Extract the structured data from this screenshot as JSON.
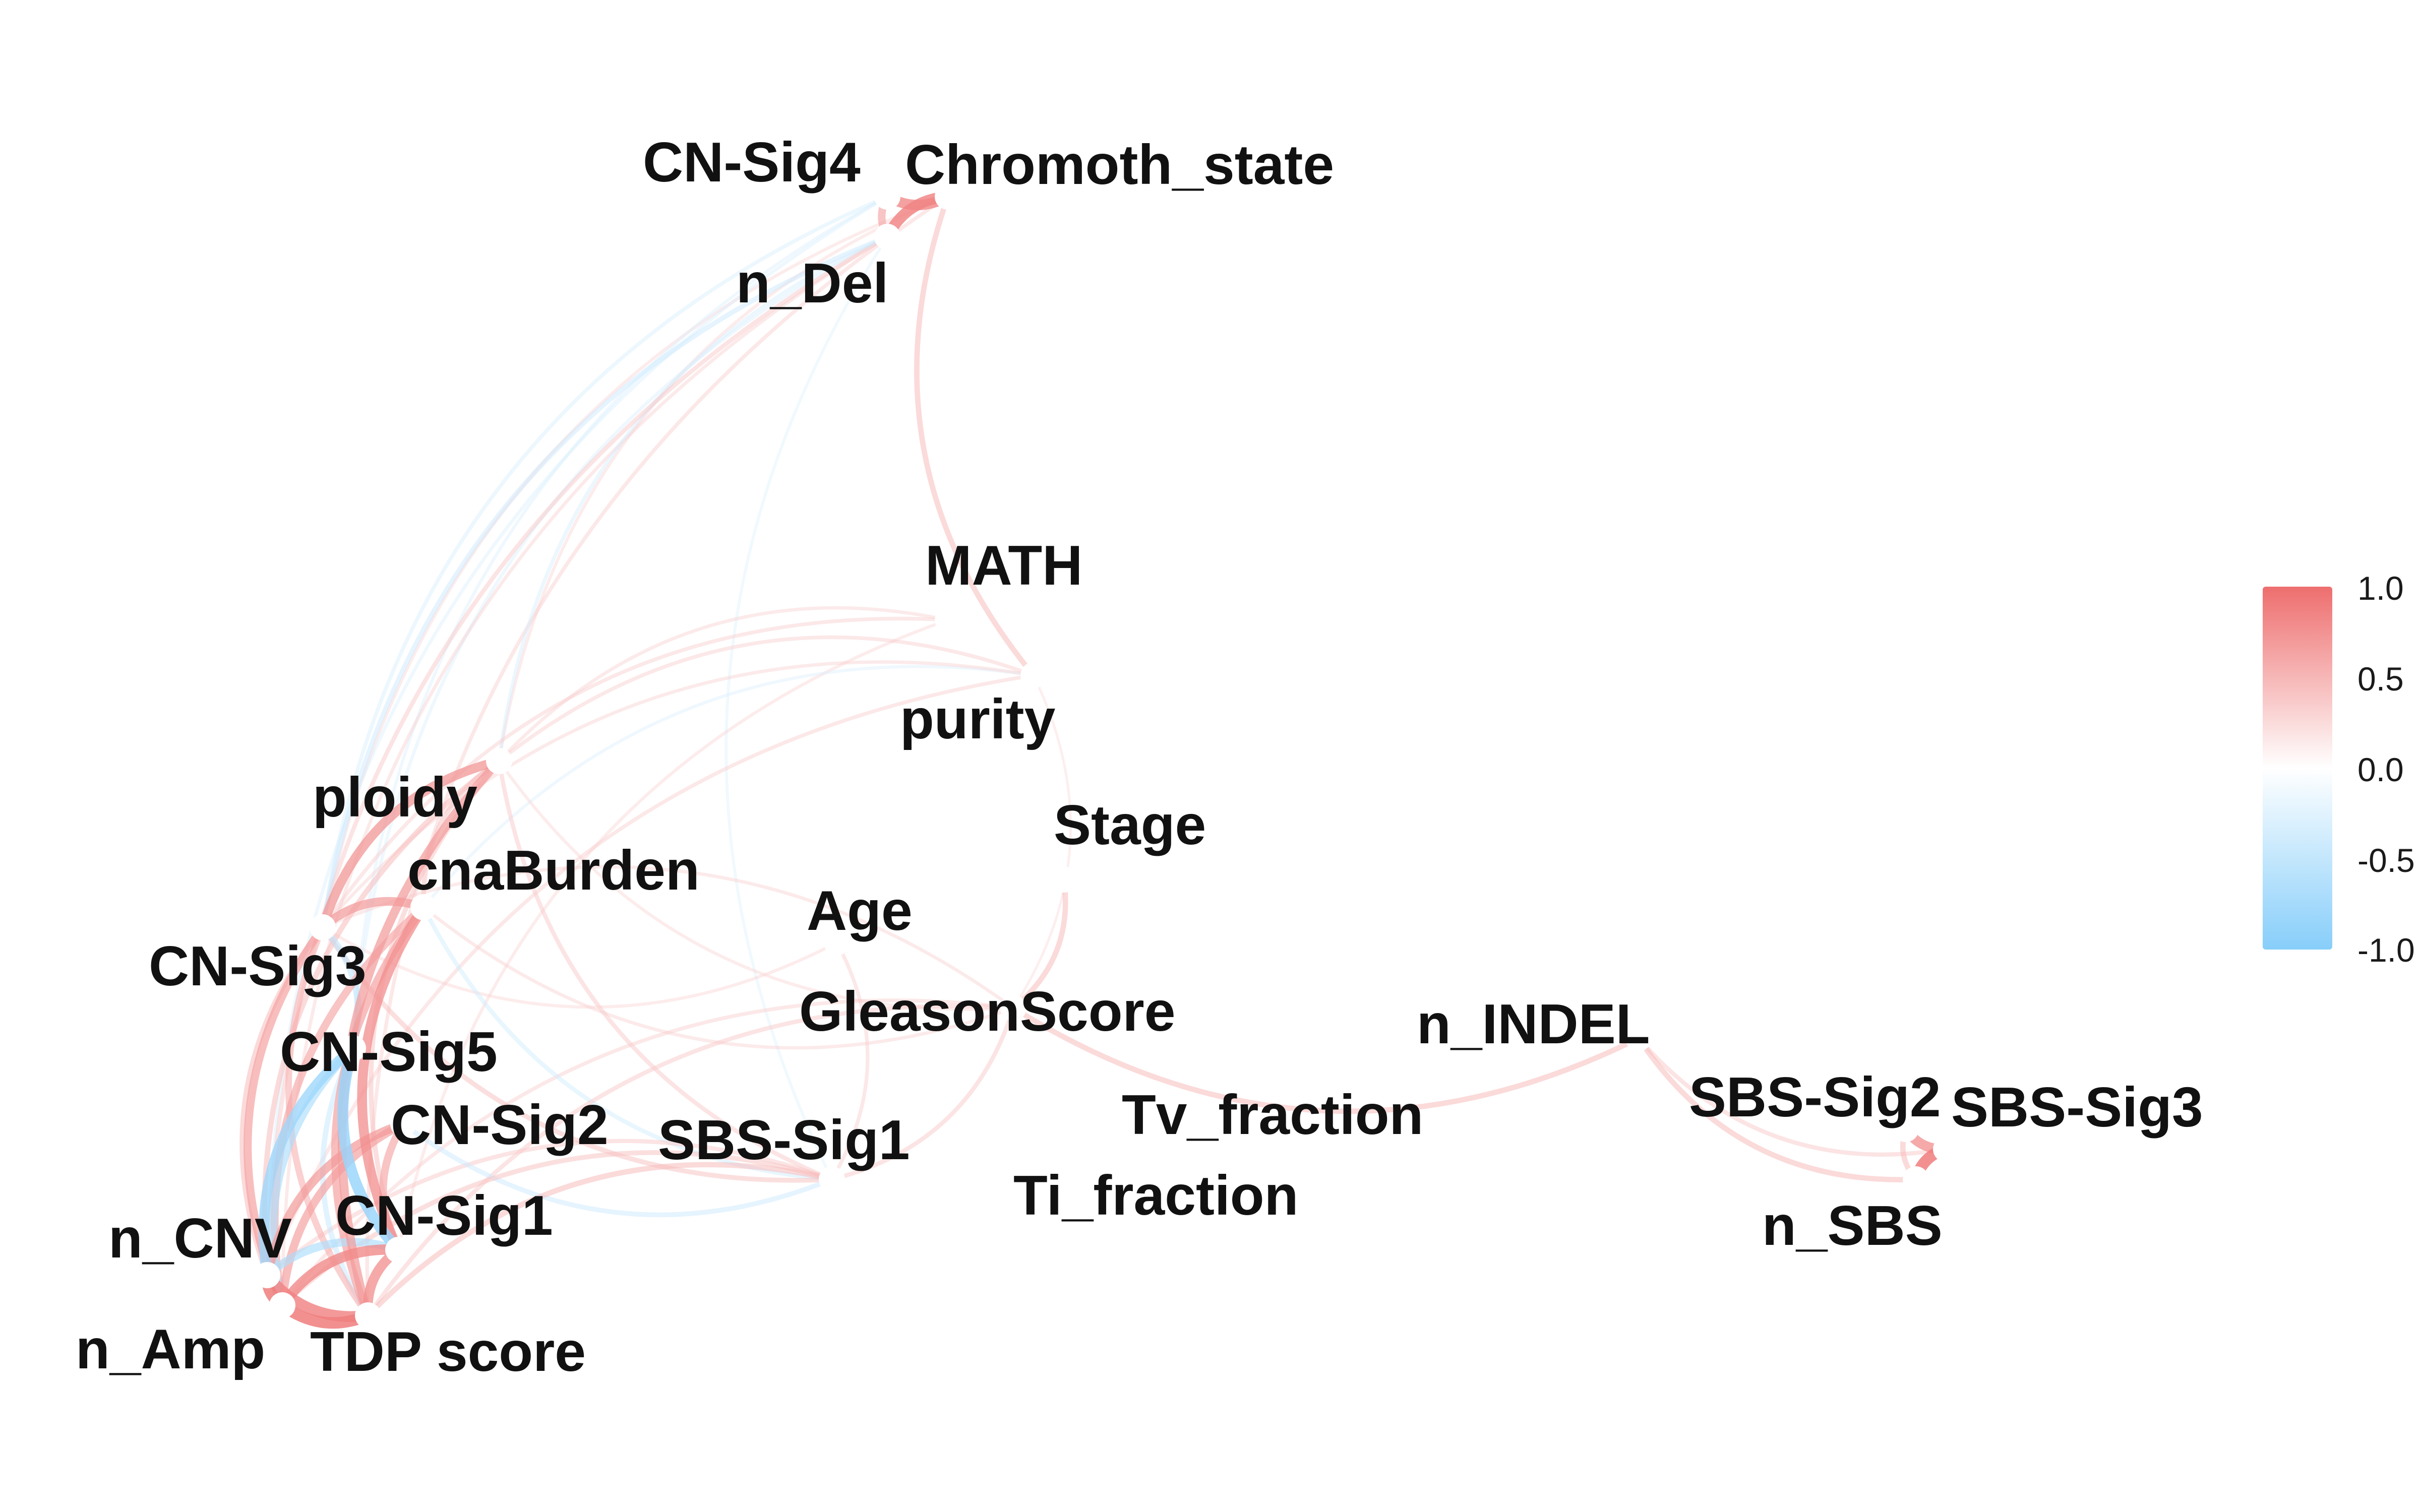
{
  "colors": {
    "positive": "#EE6E6E",
    "neutral": "#FFFFFF",
    "negative": "#87CEFA",
    "label": "#111111",
    "node": "#FFFFFF"
  },
  "legend": {
    "placement": "right",
    "ticks": [
      "1.0",
      "0.5",
      "0.0",
      "-0.5",
      "-1.0"
    ]
  },
  "nodes": [
    {
      "id": "cn_sig4",
      "label": "CN-Sig4"
    },
    {
      "id": "chromoth_state",
      "label": "Chromoth_state"
    },
    {
      "id": "n_del",
      "label": "n_Del"
    },
    {
      "id": "math",
      "label": "MATH"
    },
    {
      "id": "purity",
      "label": "purity"
    },
    {
      "id": "ploidy",
      "label": "ploidy"
    },
    {
      "id": "stage",
      "label": "Stage"
    },
    {
      "id": "cnaburden",
      "label": "cnaBurden"
    },
    {
      "id": "age",
      "label": "Age"
    },
    {
      "id": "cn_sig3",
      "label": "CN-Sig3"
    },
    {
      "id": "gleasonscore",
      "label": "GleasonScore"
    },
    {
      "id": "n_indel",
      "label": "n_INDEL"
    },
    {
      "id": "cn_sig5",
      "label": "CN-Sig5"
    },
    {
      "id": "sbs_sig2",
      "label": "SBS-Sig2"
    },
    {
      "id": "sbs_sig3",
      "label": "SBS-Sig3"
    },
    {
      "id": "tv_fraction",
      "label": "Tv_fraction"
    },
    {
      "id": "cn_sig2",
      "label": "CN-Sig2"
    },
    {
      "id": "sbs_sig1",
      "label": "SBS-Sig1"
    },
    {
      "id": "ti_fraction",
      "label": "Ti_fraction"
    },
    {
      "id": "cn_sig1",
      "label": "CN-Sig1"
    },
    {
      "id": "n_sbs",
      "label": "n_SBS"
    },
    {
      "id": "n_cnv",
      "label": "n_CNV"
    },
    {
      "id": "n_amp",
      "label": "n_Amp"
    },
    {
      "id": "tdp_score",
      "label": "TDP score"
    }
  ],
  "edges": [
    {
      "source": "cn_sig4",
      "target": "chromoth_state",
      "weight": 0.75
    },
    {
      "source": "cn_sig4",
      "target": "n_del",
      "weight": 0.5
    },
    {
      "source": "chromoth_state",
      "target": "n_del",
      "weight": 0.8
    },
    {
      "source": "chromoth_state",
      "target": "purity",
      "weight": 0.3
    },
    {
      "source": "chromoth_state",
      "target": "cn_sig3",
      "weight": 0.1
    },
    {
      "source": "chromoth_state",
      "target": "tdp_score",
      "weight": 0.15
    },
    {
      "source": "chromoth_state",
      "target": "ploidy",
      "weight": 0.1
    },
    {
      "source": "cn_sig4",
      "target": "cn_sig3",
      "weight": -0.15
    },
    {
      "source": "cn_sig4",
      "target": "n_cnv",
      "weight": -0.12
    },
    {
      "source": "cn_sig4",
      "target": "cn_sig5",
      "weight": -0.1
    },
    {
      "source": "n_del",
      "target": "n_cnv",
      "weight": 0.2
    },
    {
      "source": "n_del",
      "target": "cn_sig3",
      "weight": -0.25
    },
    {
      "source": "n_del",
      "target": "ploidy",
      "weight": -0.15
    },
    {
      "source": "n_del",
      "target": "cn_sig5",
      "weight": -0.12
    },
    {
      "source": "n_del",
      "target": "n_amp",
      "weight": 0.12
    },
    {
      "source": "n_del",
      "target": "sbs_sig1",
      "weight": -0.08
    },
    {
      "source": "math",
      "target": "cn_sig3",
      "weight": 0.15
    },
    {
      "source": "math",
      "target": "cn_sig1",
      "weight": 0.1
    },
    {
      "source": "math",
      "target": "ploidy",
      "weight": 0.12
    },
    {
      "source": "purity",
      "target": "ploidy",
      "weight": 0.15
    },
    {
      "source": "purity",
      "target": "cn_sig3",
      "weight": 0.12
    },
    {
      "source": "purity",
      "target": "n_cnv",
      "weight": 0.15
    },
    {
      "source": "purity",
      "target": "cnaburden",
      "weight": -0.1
    },
    {
      "source": "ploidy",
      "target": "cn_sig3",
      "weight": 0.65
    },
    {
      "source": "ploidy",
      "target": "cnaburden",
      "weight": 0.25
    },
    {
      "source": "ploidy",
      "target": "tdp_score",
      "weight": 0.6
    },
    {
      "source": "ploidy",
      "target": "n_cnv",
      "weight": 0.3
    },
    {
      "source": "ploidy",
      "target": "sbs_sig1",
      "weight": 0.2
    },
    {
      "source": "ploidy",
      "target": "gleasonscore",
      "weight": 0.1
    },
    {
      "source": "ploidy",
      "target": "cn_sig1",
      "weight": 0.25
    },
    {
      "source": "cnaburden",
      "target": "cn_sig3",
      "weight": 0.6
    },
    {
      "source": "cnaburden",
      "target": "cn_sig1",
      "weight": 0.7
    },
    {
      "source": "cnaburden",
      "target": "tdp_score",
      "weight": 0.55
    },
    {
      "source": "cnaburden",
      "target": "n_amp",
      "weight": 0.5
    },
    {
      "source": "cnaburden",
      "target": "sbs_sig1",
      "weight": -0.2
    },
    {
      "source": "cnaburden",
      "target": "gleasonscore",
      "weight": 0.12
    },
    {
      "source": "cn_sig3",
      "target": "n_amp",
      "weight": 0.55
    },
    {
      "source": "cn_sig3",
      "target": "tdp_score",
      "weight": 0.4
    },
    {
      "source": "cn_sig3",
      "target": "n_cnv",
      "weight": 0.3
    },
    {
      "source": "cn_sig3",
      "target": "sbs_sig1",
      "weight": 0.25
    },
    {
      "source": "cn_sig3",
      "target": "age",
      "weight": 0.1
    },
    {
      "source": "cn_sig5",
      "target": "n_cnv",
      "weight": -0.75
    },
    {
      "source": "cn_sig5",
      "target": "cn_sig1",
      "weight": -0.8
    },
    {
      "source": "cn_sig5",
      "target": "n_amp",
      "weight": -0.55
    },
    {
      "source": "cn_sig5",
      "target": "cn_sig3",
      "weight": -0.4
    },
    {
      "source": "cn_sig5",
      "target": "tdp_score",
      "weight": -0.3
    },
    {
      "source": "cn_sig2",
      "target": "n_cnv",
      "weight": 0.6
    },
    {
      "source": "cn_sig2",
      "target": "n_amp",
      "weight": 0.55
    },
    {
      "source": "cn_sig2",
      "target": "cn_sig1",
      "weight": 0.5
    },
    {
      "source": "cn_sig2",
      "target": "sbs_sig1",
      "weight": -0.25
    },
    {
      "source": "cn_sig1",
      "target": "n_cnv",
      "weight": -0.55
    },
    {
      "source": "cn_sig1",
      "target": "n_amp",
      "weight": 0.75
    },
    {
      "source": "cn_sig1",
      "target": "tdp_score",
      "weight": 0.7
    },
    {
      "source": "n_cnv",
      "target": "n_amp",
      "weight": 0.85
    },
    {
      "source": "n_cnv",
      "target": "tdp_score",
      "weight": 0.8
    },
    {
      "source": "n_amp",
      "target": "tdp_score",
      "weight": 0.85
    },
    {
      "source": "sbs_sig1",
      "target": "tdp_score",
      "weight": 0.3
    },
    {
      "source": "sbs_sig1",
      "target": "n_amp",
      "weight": 0.25
    },
    {
      "source": "sbs_sig1",
      "target": "n_cnv",
      "weight": 0.2
    },
    {
      "source": "sbs_sig1",
      "target": "gleasonscore",
      "weight": 0.2
    },
    {
      "source": "sbs_sig1",
      "target": "age",
      "weight": 0.15
    },
    {
      "source": "gleasonscore",
      "target": "stage",
      "weight": 0.3
    },
    {
      "source": "gleasonscore",
      "target": "n_indel",
      "weight": 0.3
    },
    {
      "source": "gleasonscore",
      "target": "tdp_score",
      "weight": 0.2
    },
    {
      "source": "gleasonscore",
      "target": "cn_sig3",
      "weight": 0.12
    },
    {
      "source": "gleasonscore",
      "target": "n_amp",
      "weight": 0.15
    },
    {
      "source": "gleasonscore",
      "target": "purity",
      "weight": 0.05
    },
    {
      "source": "n_indel",
      "target": "n_sbs",
      "weight": 0.3
    },
    {
      "source": "sbs_sig2",
      "target": "sbs_sig3",
      "weight": 0.7
    },
    {
      "source": "sbs_sig2",
      "target": "n_sbs",
      "weight": 0.3
    },
    {
      "source": "sbs_sig3",
      "target": "n_sbs",
      "weight": 0.85
    },
    {
      "source": "n_indel",
      "target": "sbs_sig3",
      "weight": 0.2
    }
  ]
}
